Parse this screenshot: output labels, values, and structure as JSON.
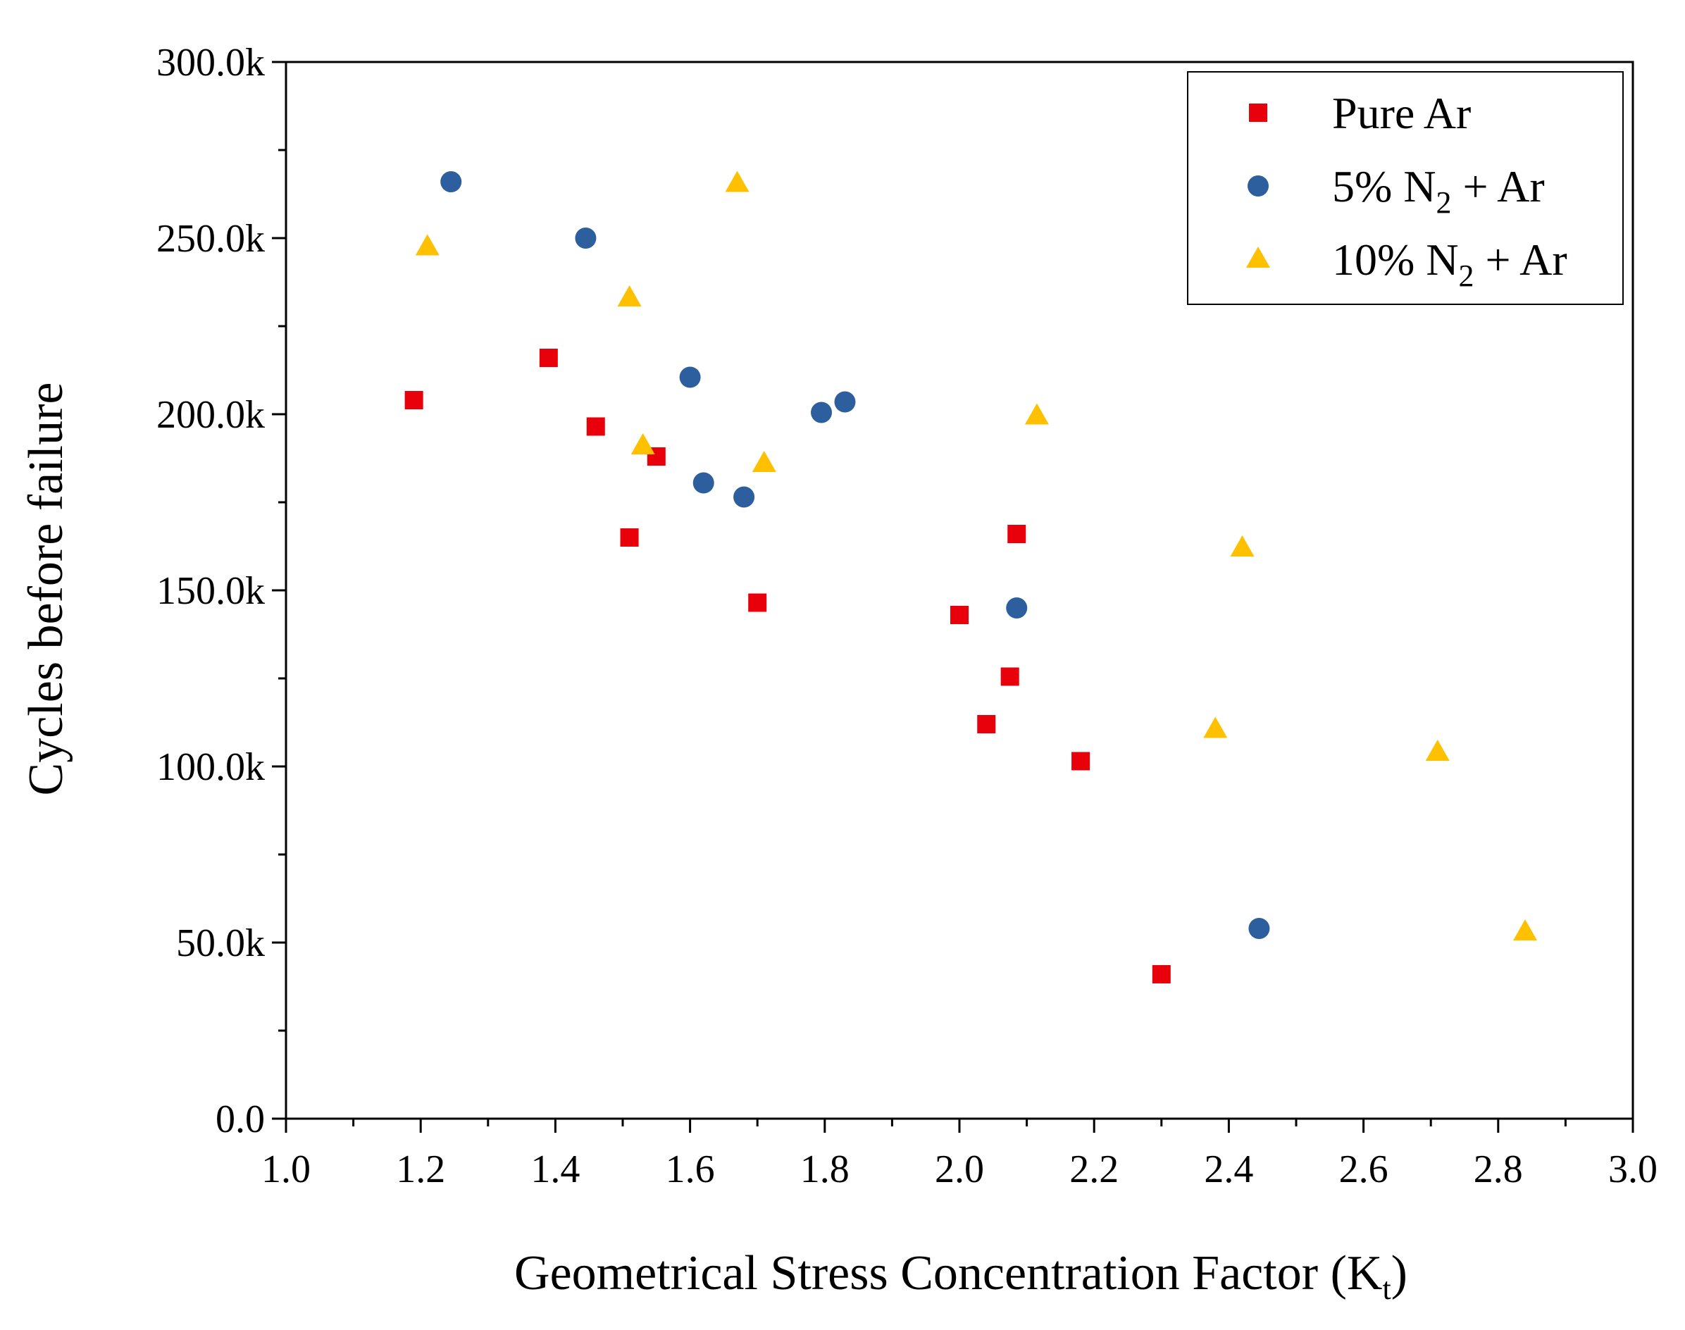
{
  "chart_data": {
    "type": "scatter",
    "xlabel": "Geometrical Stress Concentration Factor (K",
    "xlabel_sub": "t",
    "xlabel_close": ")",
    "ylabel": "Cycles before failure",
    "xlim": [
      1.0,
      3.0
    ],
    "ylim": [
      0,
      300000
    ],
    "x_ticks": [
      1.0,
      1.2,
      1.4,
      1.6,
      1.8,
      2.0,
      2.2,
      2.4,
      2.6,
      2.8,
      3.0
    ],
    "x_tick_labels": [
      "1.0",
      "1.2",
      "1.4",
      "1.6",
      "1.8",
      "2.0",
      "2.2",
      "2.4",
      "2.6",
      "2.8",
      "3.0"
    ],
    "y_ticks": [
      0,
      50000,
      100000,
      150000,
      200000,
      250000,
      300000
    ],
    "y_tick_labels": [
      "0.0",
      "50.0k",
      "100.0k",
      "150.0k",
      "200.0k",
      "250.0k",
      "300.0k"
    ],
    "legend_position": "top-right",
    "grid": false,
    "series": [
      {
        "name": "Pure Ar",
        "name_parts": [
          "Pure Ar"
        ],
        "marker": "square",
        "color": "#e8000b",
        "points": [
          [
            1.19,
            204000
          ],
          [
            1.39,
            216000
          ],
          [
            1.46,
            196500
          ],
          [
            1.51,
            165000
          ],
          [
            1.55,
            188000
          ],
          [
            1.7,
            146500
          ],
          [
            2.0,
            143000
          ],
          [
            2.04,
            112000
          ],
          [
            2.075,
            125500
          ],
          [
            2.085,
            166000
          ],
          [
            2.18,
            101500
          ],
          [
            2.3,
            41000
          ]
        ]
      },
      {
        "name": "5% N2 + Ar",
        "name_parts": [
          "5% N",
          "2",
          " + Ar"
        ],
        "marker": "circle",
        "color": "#2d5f9e",
        "points": [
          [
            1.245,
            266000
          ],
          [
            1.445,
            250000
          ],
          [
            1.6,
            210500
          ],
          [
            1.62,
            180500
          ],
          [
            1.68,
            176500
          ],
          [
            1.795,
            200500
          ],
          [
            1.83,
            203500
          ],
          [
            2.085,
            145000
          ],
          [
            2.445,
            54000
          ]
        ]
      },
      {
        "name": "10% N2 + Ar",
        "name_parts": [
          "10% N",
          "2",
          " + Ar"
        ],
        "marker": "triangle",
        "color": "#ffc000",
        "points": [
          [
            1.21,
            247500
          ],
          [
            1.51,
            233000
          ],
          [
            1.53,
            191000
          ],
          [
            1.67,
            265500
          ],
          [
            1.71,
            186000
          ],
          [
            2.115,
            199500
          ],
          [
            2.38,
            110500
          ],
          [
            2.42,
            162000
          ],
          [
            2.71,
            104000
          ],
          [
            2.84,
            53000
          ]
        ]
      }
    ]
  }
}
